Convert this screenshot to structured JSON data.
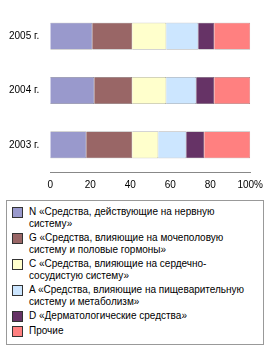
{
  "chart_data": {
    "type": "bar",
    "orientation": "horizontal",
    "stacked": true,
    "grid": false,
    "legend": "bottom",
    "categories": [
      "2005 г.",
      "2004 г.",
      "2003 г."
    ],
    "series": [
      {
        "name": "N «Средства, действующие на нервную систему»",
        "color": "#9999cc",
        "values": [
          21,
          22,
          18
        ]
      },
      {
        "name": "G «Средства, влияющие на мочеполовую систему и половые гормоны»",
        "color": "#996666",
        "values": [
          20,
          19,
          23
        ]
      },
      {
        "name": "C «Средства, влияющие на сердечно-сосудистую систему»",
        "color": "#ffffcc",
        "values": [
          17,
          17,
          13
        ]
      },
      {
        "name": "A «Средства, влияющие на пищеварительную систему и метаболизм»",
        "color": "#cce6ff",
        "values": [
          16,
          15,
          14
        ]
      },
      {
        "name": "D «Дерматологические средства»",
        "color": "#663366",
        "values": [
          8,
          9,
          9
        ]
      },
      {
        "name": "Прочие",
        "color": "#ff8080",
        "values": [
          18,
          18,
          23
        ]
      }
    ],
    "xlim": [
      0,
      100
    ],
    "xticks": [
      0,
      20,
      40,
      60,
      80,
      {
        "value": 100,
        "label": "100%"
      }
    ]
  }
}
